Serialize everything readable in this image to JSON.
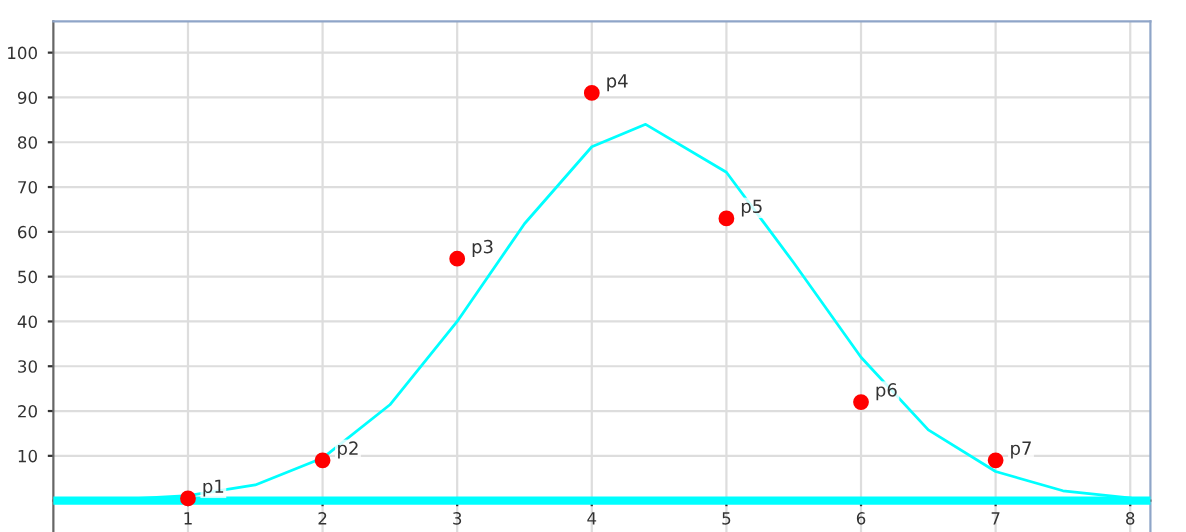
{
  "chart_data": {
    "type": "scatter",
    "series": [
      {
        "color": "#ff0000",
        "marker": "circle",
        "x": [
          1,
          2,
          3,
          4,
          5,
          6,
          7
        ],
        "values": [
          0.5,
          9,
          54,
          91,
          63,
          22,
          9
        ]
      },
      {
        "type": "line",
        "color": "#00ffff",
        "marker": "none",
        "x": [
          0.5,
          1,
          1.5,
          2,
          2.5,
          3,
          3.5,
          4,
          4.4,
          5,
          5.5,
          6,
          6.5,
          7,
          7.5,
          8
        ],
        "values": [
          0.3,
          1.1,
          3.5,
          9.5,
          21.4,
          40,
          61.8,
          79,
          84,
          73.3,
          53.1,
          32,
          15.8,
          6.5,
          2.2,
          0.6
        ]
      }
    ],
    "annotations": [
      {
        "text": "p1",
        "x": 1,
        "y": 0.5
      },
      {
        "text": "p2",
        "x": 2,
        "y": 9
      },
      {
        "text": "p3",
        "x": 3,
        "y": 54
      },
      {
        "text": "p4",
        "x": 4,
        "y": 91
      },
      {
        "text": "p5",
        "x": 5,
        "y": 63
      },
      {
        "text": "p6",
        "x": 6,
        "y": 22
      },
      {
        "text": "p7",
        "x": 7,
        "y": 9
      }
    ],
    "ref_lines": [
      {
        "axis": "y",
        "value": 0,
        "color": "#00ffff"
      }
    ],
    "xlim": [
      0,
      8.15
    ],
    "ylim": [
      -7,
      107
    ],
    "xticks": [
      1,
      2,
      3,
      4,
      5,
      6,
      7,
      8
    ],
    "yticks": [
      10,
      20,
      30,
      40,
      50,
      60,
      70,
      80,
      90,
      100
    ],
    "grid": true
  }
}
